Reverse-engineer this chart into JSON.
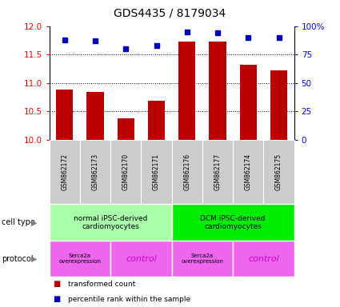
{
  "title": "GDS4435 / 8179034",
  "samples": [
    "GSM862172",
    "GSM862173",
    "GSM862170",
    "GSM862171",
    "GSM862176",
    "GSM862177",
    "GSM862174",
    "GSM862175"
  ],
  "transformed_counts": [
    10.88,
    10.84,
    10.37,
    10.68,
    11.73,
    11.73,
    11.32,
    11.22
  ],
  "percentile_ranks": [
    88,
    87,
    80,
    83,
    95,
    94,
    90,
    90
  ],
  "ylim_left": [
    10,
    12
  ],
  "ylim_right": [
    0,
    100
  ],
  "yticks_left": [
    10,
    10.5,
    11,
    11.5,
    12
  ],
  "yticks_right": [
    0,
    25,
    50,
    75,
    100
  ],
  "ytick_labels_right": [
    "0",
    "25",
    "50",
    "75",
    "100%"
  ],
  "bar_color": "#bb0000",
  "dot_color": "#0000bb",
  "cell_type_label_1": "normal iPSC-derived\ncardiomyocytes",
  "cell_type_label_2": "DCM iPSC-derived\ncardiomyocytes",
  "cell_type_color_1": "#aaffaa",
  "cell_type_color_2": "#00ee00",
  "protocol_color": "#ee66ee",
  "protocol_serca_text": "Serca2a\noverexpression",
  "protocol_control_text": "control",
  "sample_bg_color": "#cccccc",
  "sample_sep_color": "#ffffff"
}
